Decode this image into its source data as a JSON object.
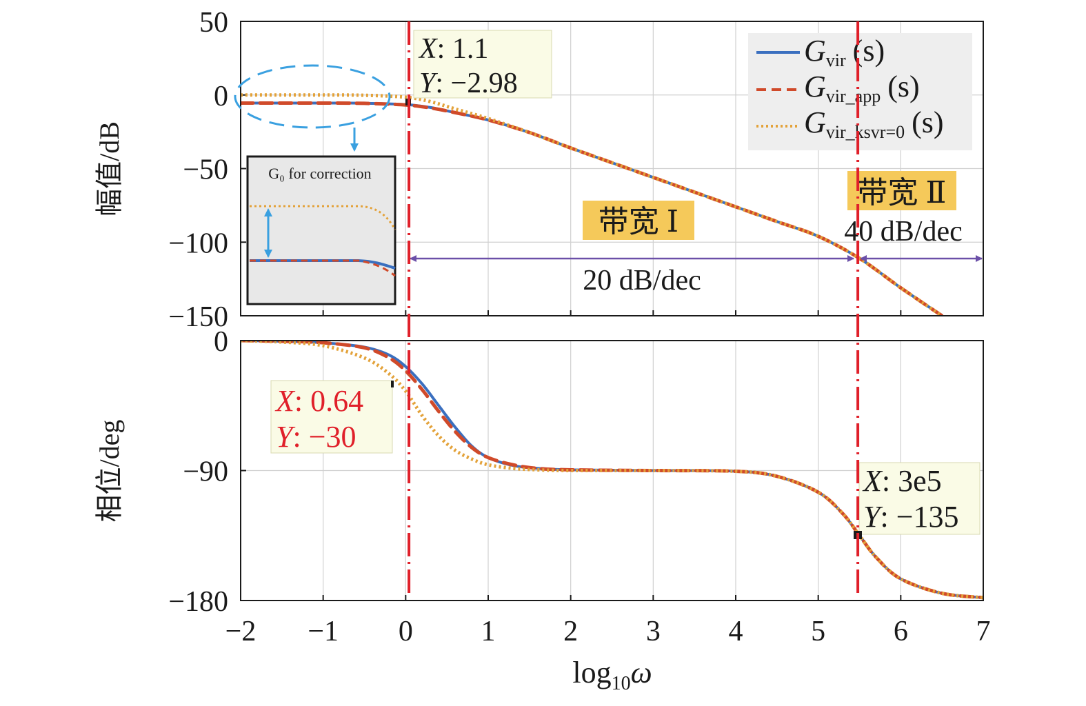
{
  "chart_data": [
    {
      "type": "line",
      "panel": "magnitude",
      "ylabel": "幅值/dB",
      "xlabel": "",
      "xlim": [
        -2,
        7
      ],
      "ylim": [
        -150,
        50
      ],
      "y_ticks": [
        50,
        0,
        -50,
        -100,
        -150
      ],
      "y_tick_labels": [
        "50",
        "0",
        "−50",
        "−100",
        "−150"
      ],
      "x_ticks": [
        -2,
        -1,
        0,
        1,
        2,
        3,
        4,
        5,
        6,
        7
      ],
      "grid": true,
      "legend_position": "top-right",
      "series": [
        {
          "name": "G_vir(s)",
          "color": "#3a6fbf",
          "style": "solid",
          "x": [
            -2,
            -1.5,
            -1,
            -0.5,
            0,
            0.3,
            0.6,
            1,
            1.5,
            2,
            2.5,
            3,
            3.5,
            4,
            4.5,
            5,
            5.5,
            6,
            6.5
          ],
          "y": [
            -5.5,
            -5.5,
            -5.5,
            -5.6,
            -6.5,
            -8.5,
            -12,
            -17,
            -25.5,
            -36,
            -46,
            -56,
            -66,
            -76,
            -86,
            -96,
            -111,
            -131,
            -150
          ]
        },
        {
          "name": "G_vir_app(s)",
          "color": "#d04a2a",
          "style": "dashed",
          "x": [
            -2,
            -1.5,
            -1,
            -0.5,
            0,
            0.3,
            0.6,
            1,
            1.5,
            2,
            2.5,
            3,
            3.5,
            4,
            4.5,
            5,
            5.5,
            6,
            6.5
          ],
          "y": [
            -5.5,
            -5.5,
            -5.5,
            -5.7,
            -6.8,
            -8.8,
            -12,
            -17,
            -25.5,
            -36,
            -46,
            -56,
            -66,
            -76,
            -86,
            -96,
            -111,
            -131,
            -150
          ]
        },
        {
          "name": "G_vir_ksvr=0(s)",
          "color": "#e3a23a",
          "style": "dotted",
          "x": [
            -2,
            -1.5,
            -1,
            -0.5,
            0,
            0.3,
            0.6,
            1,
            1.5,
            2,
            2.5,
            3,
            3.5,
            4,
            4.5,
            5,
            5.5,
            6,
            6.5
          ],
          "y": [
            0,
            0,
            0,
            -0.2,
            -1.5,
            -4.5,
            -9.5,
            -16,
            -25.5,
            -36,
            -46,
            -56,
            -66,
            -76,
            -86,
            -96,
            -111,
            -131,
            -150
          ]
        }
      ],
      "annotations": {
        "datatip": {
          "x_label": "X",
          "x_value": "1.1",
          "y_label": "Y",
          "y_value": "−2.98"
        },
        "band1_label": "带宽 Ⅰ",
        "band2_label": "带宽 Ⅱ",
        "slope1_label": "20 dB/dec",
        "slope2_label": "40 dB/dec",
        "inset_title": "G₀ for correction"
      }
    },
    {
      "type": "line",
      "panel": "phase",
      "ylabel": "相位/deg",
      "xlabel": "log₁₀ω",
      "xlim": [
        -2,
        7
      ],
      "ylim": [
        -180,
        0
      ],
      "y_ticks": [
        0,
        -90,
        -180
      ],
      "y_tick_labels": [
        "0",
        "−90",
        "−180"
      ],
      "x_ticks": [
        -2,
        -1,
        0,
        1,
        2,
        3,
        4,
        5,
        6,
        7
      ],
      "x_tick_labels": [
        "−2",
        "−1",
        "0",
        "1",
        "2",
        "3",
        "4",
        "5",
        "6",
        "7"
      ],
      "grid": true,
      "series": [
        {
          "name": "G_vir(s)",
          "color": "#3a6fbf",
          "style": "solid",
          "x": [
            -2,
            -1.5,
            -1,
            -0.5,
            -0.2,
            0,
            0.2,
            0.4,
            0.6,
            0.8,
            1,
            1.3,
            1.6,
            2,
            3,
            4,
            4.5,
            5,
            5.3,
            5.5,
            5.7,
            6,
            6.5,
            7
          ],
          "y": [
            0,
            -0.5,
            -1.5,
            -4.5,
            -10,
            -18,
            -30,
            -45,
            -60,
            -73,
            -81,
            -86.5,
            -88.5,
            -89.5,
            -90,
            -90.5,
            -94,
            -105,
            -120,
            -135,
            -150,
            -165,
            -175,
            -178
          ]
        },
        {
          "name": "G_vir_app(s)",
          "color": "#d04a2a",
          "style": "dashed",
          "x": [
            -2,
            -1.5,
            -1,
            -0.5,
            -0.2,
            0,
            0.2,
            0.4,
            0.6,
            0.8,
            1,
            1.3,
            1.6,
            2,
            3,
            4,
            4.5,
            5,
            5.3,
            5.5,
            5.7,
            6,
            6.5,
            7
          ],
          "y": [
            0,
            -0.5,
            -1.5,
            -5,
            -12,
            -21,
            -34,
            -49,
            -63,
            -74,
            -81,
            -86,
            -88.5,
            -89.5,
            -90,
            -90.5,
            -94,
            -105,
            -120,
            -135,
            -150,
            -165,
            -175,
            -178
          ]
        },
        {
          "name": "G_vir_ksvr=0(s)",
          "color": "#e3a23a",
          "style": "dotted",
          "x": [
            -2,
            -1.5,
            -1,
            -0.5,
            -0.2,
            0,
            0.2,
            0.4,
            0.6,
            0.8,
            1,
            1.3,
            1.6,
            2,
            3,
            4,
            4.5,
            5,
            5.3,
            5.5,
            5.7,
            6,
            6.5,
            7
          ],
          "y": [
            0,
            -1,
            -3.5,
            -12,
            -23,
            -35,
            -52,
            -66,
            -76,
            -82,
            -86,
            -88.5,
            -89.5,
            -90,
            -90,
            -90.5,
            -94,
            -105,
            -120,
            -135,
            -150,
            -165,
            -175,
            -178
          ]
        }
      ],
      "annotations": {
        "datatip_left": {
          "x_label": "X",
          "x_value": "0.64",
          "y_label": "Y",
          "y_value": "−30"
        },
        "datatip_right": {
          "x_label": "X",
          "x_value": "3e5",
          "y_label": "Y",
          "y_value": "−135"
        }
      }
    }
  ],
  "legend": {
    "entries": [
      {
        "main": "G",
        "sub": "vir",
        "suffix": "(s)"
      },
      {
        "main": "G",
        "sub": "vir_app",
        "suffix": "(s)"
      },
      {
        "main": "G",
        "sub": "vir_ksvr=0",
        "suffix": "(s)"
      }
    ]
  },
  "markers": {
    "vertical_lines_x": [
      0.04,
      5.48
    ],
    "color": "#e0202a"
  },
  "colors": {
    "blue": "#3a6fbf",
    "red": "#d04a2a",
    "orange": "#e3a23a",
    "guide_red": "#e0202a",
    "arrow_purple": "#6b4fa8",
    "highlight": "#f5c95a",
    "datatip_bg": "#fafbe6",
    "inset_bg": "#e8e8e8",
    "cyan": "#3aa0e0"
  }
}
